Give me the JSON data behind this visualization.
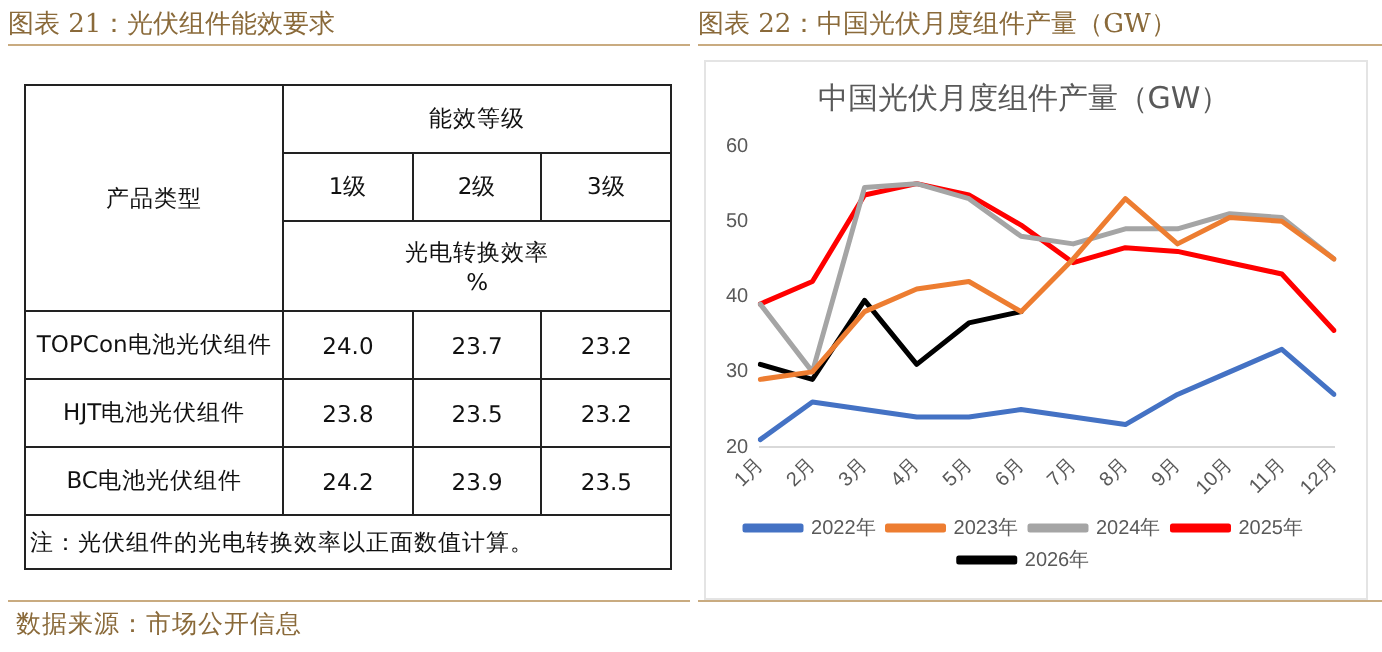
{
  "chart_data": [
    {
      "type": "other",
      "title": "图表 21：光伏组件能效要求",
      "ylabel": "产品类型",
      "xlabel": "能效等级",
      "categories": [
        "TOPCon电池光伏组件",
        "HJT电池光伏组件",
        "BC电池光伏组件"
      ],
      "series": [
        {
          "name": "1级",
          "values": [
            24.0,
            23.8,
            24.2
          ],
          "value_labels": [
            "24.0",
            "23.8",
            "24.2"
          ]
        },
        {
          "name": "2级",
          "values": [
            23.7,
            23.5,
            23.9
          ],
          "value_labels": [
            "23.7",
            "23.5",
            "23.9"
          ]
        },
        {
          "name": "3级",
          "values": [
            23.2,
            23.2,
            23.5
          ],
          "value_labels": [
            "23.2",
            "23.2",
            "23.5"
          ]
        }
      ],
      "annotations": [
        "光电转换效率",
        "%",
        "注：光伏组件的光电转换效率以正面数值计算。",
        "数据来源：市场公开信息"
      ]
    },
    {
      "type": "line",
      "title": "图表 22：中国光伏月度组件产量（GW）",
      "subtitle": "中国光伏月度组件产量（GW）",
      "categories": [
        "1月",
        "2月",
        "3月",
        "4月",
        "5月",
        "6月",
        "7月",
        "8月",
        "9月",
        "10月",
        "11月",
        "12月"
      ],
      "series": [
        {
          "name": "2022年",
          "color": "#4472c4",
          "values": [
            21,
            26,
            25,
            24,
            24,
            25,
            24,
            23,
            27,
            30,
            33,
            27
          ]
        },
        {
          "name": "2023年",
          "color": "#ed7d31",
          "values": [
            29,
            30,
            38,
            41,
            42,
            38,
            45,
            53,
            47,
            50.5,
            50,
            45
          ]
        },
        {
          "name": "2024年",
          "color": "#a5a5a5",
          "values": [
            39,
            30,
            54.5,
            55,
            53,
            48,
            47,
            49,
            49,
            51,
            50.5,
            45
          ]
        },
        {
          "name": "2025年",
          "color": "#ff0000",
          "values": [
            39,
            42,
            53.5,
            55,
            53.5,
            49.5,
            44.5,
            46.5,
            46,
            44.5,
            43,
            35.5
          ]
        },
        {
          "name": "2026年",
          "color": "#000000",
          "values": [
            31,
            29,
            39.5,
            31,
            36.5,
            38,
            null,
            null,
            null,
            null,
            null,
            null
          ]
        }
      ],
      "ylim": [
        20,
        60
      ],
      "yticks": [
        20,
        30,
        40,
        50,
        60
      ],
      "grid": false,
      "legend": "bottom",
      "marker": "none",
      "line_style": "solid"
    }
  ]
}
